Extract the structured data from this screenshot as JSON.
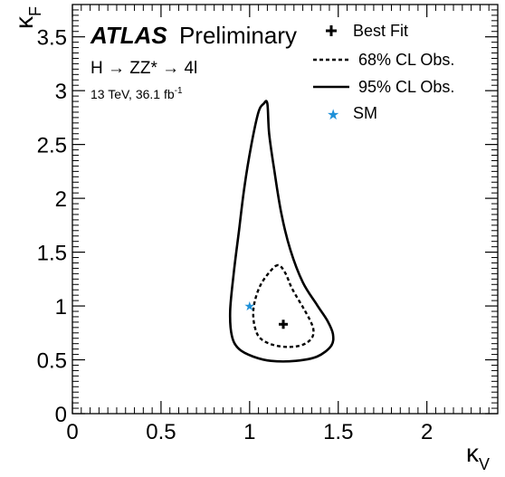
{
  "header": {
    "experiment": "ATLAS",
    "status": "Preliminary",
    "process": "H → ZZ* → 4l",
    "energy_lumi": "13 TeV, 36.1 fb",
    "lumi_exp": "-1"
  },
  "colors": {
    "axes": "#000000",
    "contours": "#000000",
    "best_fit": "#000000",
    "sm": "#1e90d8"
  },
  "chart_data": {
    "type": "scatter",
    "xlabel_base": "κ",
    "xlabel_sub": "V",
    "ylabel_base": "κ",
    "ylabel_sub": "F",
    "xlim": [
      0,
      2.4
    ],
    "ylim": [
      0,
      3.8
    ],
    "xticks": [
      0,
      0.5,
      1,
      1.5,
      2
    ],
    "xtick_labels": [
      "0",
      "0.5",
      "1",
      "1.5",
      "2"
    ],
    "yticks": [
      0,
      0.5,
      1,
      1.5,
      2,
      2.5,
      3,
      3.5
    ],
    "ytick_labels": [
      "0",
      "0.5",
      "1",
      "1.5",
      "2",
      "2.5",
      "3",
      "3.5"
    ],
    "grid": false,
    "legend_position": "top-right",
    "legend": [
      {
        "label": "Best Fit",
        "style": "cross"
      },
      {
        "label": "68% CL Obs.",
        "style": "dotted"
      },
      {
        "label": "95% CL Obs.",
        "style": "solid"
      },
      {
        "label": "SM",
        "style": "star"
      }
    ],
    "best_fit": {
      "x": 1.19,
      "y": 0.83
    },
    "sm_point": {
      "x": 1.0,
      "y": 1.0
    },
    "contour_68": [
      [
        1.16,
        1.38
      ],
      [
        1.11,
        1.31
      ],
      [
        1.06,
        1.19
      ],
      [
        1.03,
        1.05
      ],
      [
        1.02,
        0.93
      ],
      [
        1.03,
        0.8
      ],
      [
        1.06,
        0.7
      ],
      [
        1.13,
        0.64
      ],
      [
        1.22,
        0.62
      ],
      [
        1.3,
        0.64
      ],
      [
        1.35,
        0.7
      ],
      [
        1.36,
        0.78
      ],
      [
        1.34,
        0.87
      ],
      [
        1.3,
        0.99
      ],
      [
        1.24,
        1.16
      ],
      [
        1.2,
        1.31
      ],
      [
        1.16,
        1.38
      ]
    ],
    "contour_95": [
      [
        1.08,
        2.88
      ],
      [
        1.05,
        2.8
      ],
      [
        1.01,
        2.5
      ],
      [
        0.97,
        2.1
      ],
      [
        0.94,
        1.7
      ],
      [
        0.91,
        1.3
      ],
      [
        0.89,
        0.95
      ],
      [
        0.9,
        0.72
      ],
      [
        0.94,
        0.6
      ],
      [
        1.02,
        0.53
      ],
      [
        1.12,
        0.49
      ],
      [
        1.26,
        0.49
      ],
      [
        1.38,
        0.53
      ],
      [
        1.46,
        0.63
      ],
      [
        1.47,
        0.74
      ],
      [
        1.44,
        0.86
      ],
      [
        1.38,
        1.01
      ],
      [
        1.3,
        1.22
      ],
      [
        1.23,
        1.52
      ],
      [
        1.18,
        1.85
      ],
      [
        1.14,
        2.25
      ],
      [
        1.11,
        2.6
      ],
      [
        1.1,
        2.88
      ],
      [
        1.08,
        2.88
      ]
    ]
  }
}
